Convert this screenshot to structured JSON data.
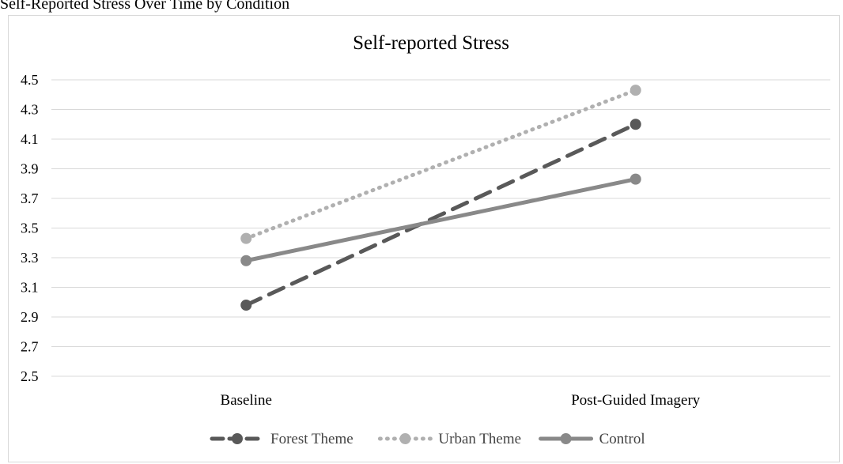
{
  "figure_caption": "Self-Reported Stress Over Time by Condition",
  "chart_data": {
    "type": "line",
    "title": "Self-reported Stress",
    "xlabel": "",
    "ylabel": "",
    "categories": [
      "Baseline",
      "Post-Guided Imagery"
    ],
    "ylim": [
      2.5,
      4.5
    ],
    "yticks": [
      "2.5",
      "2.7",
      "2.9",
      "3.1",
      "3.3",
      "3.5",
      "3.7",
      "3.9",
      "4.1",
      "4.3",
      "4.5"
    ],
    "grid": true,
    "legend_position": "bottom",
    "series": [
      {
        "name": "Forest Theme",
        "values": [
          2.98,
          4.2
        ],
        "color": "#595959",
        "line_style": "dashed"
      },
      {
        "name": "Urban Theme",
        "values": [
          3.43,
          4.43
        ],
        "color": "#b0b0b0",
        "line_style": "dotted"
      },
      {
        "name": "Control",
        "values": [
          3.28,
          3.83
        ],
        "color": "#898989",
        "line_style": "solid"
      }
    ]
  }
}
